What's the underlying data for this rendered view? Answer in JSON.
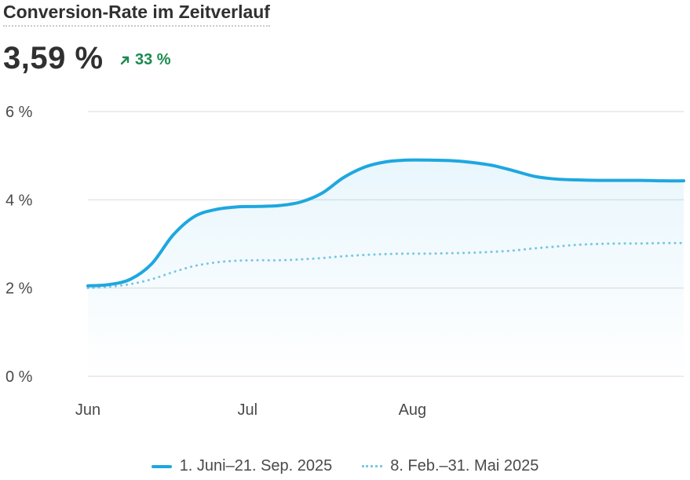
{
  "header": {
    "title": "Conversion-Rate im Zeitverlauf",
    "kpi_value": "3,59 %",
    "delta": "33 %",
    "delta_icon": "arrow-up-right-icon",
    "delta_color": "#1a8a4e"
  },
  "legend": {
    "current": "1. Juni–21. Sep. 2025",
    "previous": "8. Feb.–31. Mai 2025"
  },
  "colors": {
    "current": "#1ea7e0",
    "previous": "#7ec8e3",
    "grid": "#e6e6e6",
    "axis_text": "#4a4a4a"
  },
  "chart_data": {
    "type": "line",
    "title": "Conversion-Rate im Zeitverlauf",
    "ylim": [
      0,
      6
    ],
    "y_ticks": [
      0,
      2,
      4,
      6
    ],
    "y_tick_labels": [
      "0 %",
      "2 %",
      "4 %",
      "6 %"
    ],
    "x_range": [
      "2025-06-01",
      "2025-09-21"
    ],
    "x_ticks": [
      {
        "date": "2025-06-01",
        "label": "Jun"
      },
      {
        "date": "2025-07-01",
        "label": "Jul"
      },
      {
        "date": "2025-08-01",
        "label": "Aug"
      }
    ],
    "grid": true,
    "legend_position": "bottom",
    "series": [
      {
        "name": "1. Juni–21. Sep. 2025",
        "style": "solid",
        "area_fill": true,
        "points": [
          [
            "2025-06-01",
            2.05
          ],
          [
            "2025-06-05",
            2.08
          ],
          [
            "2025-06-09",
            2.2
          ],
          [
            "2025-06-13",
            2.55
          ],
          [
            "2025-06-17",
            3.2
          ],
          [
            "2025-06-21",
            3.62
          ],
          [
            "2025-06-25",
            3.78
          ],
          [
            "2025-06-29",
            3.84
          ],
          [
            "2025-07-03",
            3.85
          ],
          [
            "2025-07-07",
            3.87
          ],
          [
            "2025-07-11",
            3.95
          ],
          [
            "2025-07-15",
            4.15
          ],
          [
            "2025-07-19",
            4.5
          ],
          [
            "2025-07-23",
            4.74
          ],
          [
            "2025-07-27",
            4.86
          ],
          [
            "2025-07-31",
            4.9
          ],
          [
            "2025-08-04",
            4.9
          ],
          [
            "2025-08-08",
            4.89
          ],
          [
            "2025-08-12",
            4.85
          ],
          [
            "2025-08-16",
            4.78
          ],
          [
            "2025-08-20",
            4.66
          ],
          [
            "2025-08-24",
            4.53
          ],
          [
            "2025-08-28",
            4.47
          ],
          [
            "2025-09-01",
            4.45
          ],
          [
            "2025-09-05",
            4.44
          ],
          [
            "2025-09-09",
            4.44
          ],
          [
            "2025-09-13",
            4.44
          ],
          [
            "2025-09-17",
            4.43
          ],
          [
            "2025-09-21",
            4.43
          ]
        ]
      },
      {
        "name": "8. Feb.–31. Mai 2025",
        "style": "dotted",
        "area_fill": false,
        "points": [
          [
            "2025-06-01",
            2.0
          ],
          [
            "2025-06-05",
            2.03
          ],
          [
            "2025-06-09",
            2.09
          ],
          [
            "2025-06-13",
            2.2
          ],
          [
            "2025-06-17",
            2.36
          ],
          [
            "2025-06-21",
            2.5
          ],
          [
            "2025-06-25",
            2.58
          ],
          [
            "2025-06-29",
            2.62
          ],
          [
            "2025-07-03",
            2.63
          ],
          [
            "2025-07-07",
            2.63
          ],
          [
            "2025-07-11",
            2.65
          ],
          [
            "2025-07-15",
            2.68
          ],
          [
            "2025-07-19",
            2.72
          ],
          [
            "2025-07-23",
            2.75
          ],
          [
            "2025-07-27",
            2.77
          ],
          [
            "2025-07-31",
            2.78
          ],
          [
            "2025-08-04",
            2.78
          ],
          [
            "2025-08-08",
            2.79
          ],
          [
            "2025-08-12",
            2.8
          ],
          [
            "2025-08-16",
            2.82
          ],
          [
            "2025-08-20",
            2.85
          ],
          [
            "2025-08-24",
            2.9
          ],
          [
            "2025-08-28",
            2.94
          ],
          [
            "2025-09-01",
            2.98
          ],
          [
            "2025-09-05",
            3.0
          ],
          [
            "2025-09-09",
            3.01
          ],
          [
            "2025-09-13",
            3.01
          ],
          [
            "2025-09-17",
            3.02
          ],
          [
            "2025-09-21",
            3.02
          ]
        ]
      }
    ]
  }
}
